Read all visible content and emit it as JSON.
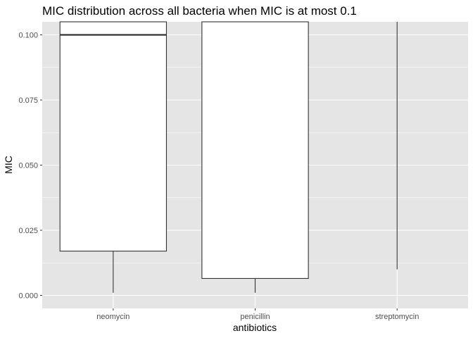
{
  "chart_data": {
    "type": "boxplot",
    "title": "MIC distribution across all bacteria when MIC is at most 0.1",
    "xlabel": "antibiotics",
    "ylabel": "MIC",
    "categories": [
      "neomycin",
      "penicillin",
      "streptomycin"
    ],
    "ylim": [
      -0.005,
      0.105
    ],
    "yticks": [
      0.0,
      0.025,
      0.05,
      0.075,
      0.1
    ],
    "ytick_labels": [
      "0.000",
      "0.025",
      "0.050",
      "0.075",
      "0.100"
    ],
    "boxes": [
      {
        "category": "neomycin",
        "whisker_low": 0.001,
        "q1": 0.017,
        "median": 0.1,
        "q3": 0.105,
        "whisker_high": 0.105
      },
      {
        "category": "penicillin",
        "whisker_low": 0.001,
        "q1": 0.0065,
        "median": null,
        "q3": 0.105,
        "whisker_high": 0.105
      },
      {
        "category": "streptomycin",
        "whisker_low": 0.01,
        "q1": null,
        "median": null,
        "q3": null,
        "whisker_high": 0.105
      }
    ],
    "grid": true,
    "legend": "none",
    "colors": {
      "panel": "#e5e5e5",
      "grid": "#ffffff",
      "box_fill": "#ffffff",
      "box_line": "#333333"
    }
  }
}
